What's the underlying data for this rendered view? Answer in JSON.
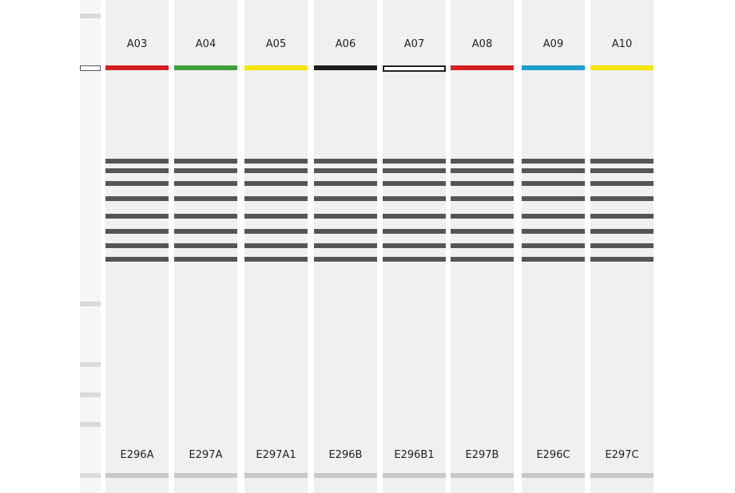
{
  "ladder": {
    "well_color": "#ffffff",
    "band_color": "#dadada"
  },
  "lanes": [
    {
      "well": "A03",
      "sample": "E296A",
      "color": "#d42020"
    },
    {
      "well": "A04",
      "sample": "E297A",
      "color": "#3da23b"
    },
    {
      "well": "A05",
      "sample": "E297A1",
      "color": "#f6e500"
    },
    {
      "well": "A06",
      "sample": "E296B",
      "color": "#1c1c1c"
    },
    {
      "well": "A07",
      "sample": "E296B1",
      "color": "#ffffff"
    },
    {
      "well": "A08",
      "sample": "E297B",
      "color": "#d42020"
    },
    {
      "well": "A09",
      "sample": "E296C",
      "color": "#1f9fcf"
    },
    {
      "well": "A10",
      "sample": "E297C",
      "color": "#f6e500"
    }
  ],
  "band_color": "#555555"
}
